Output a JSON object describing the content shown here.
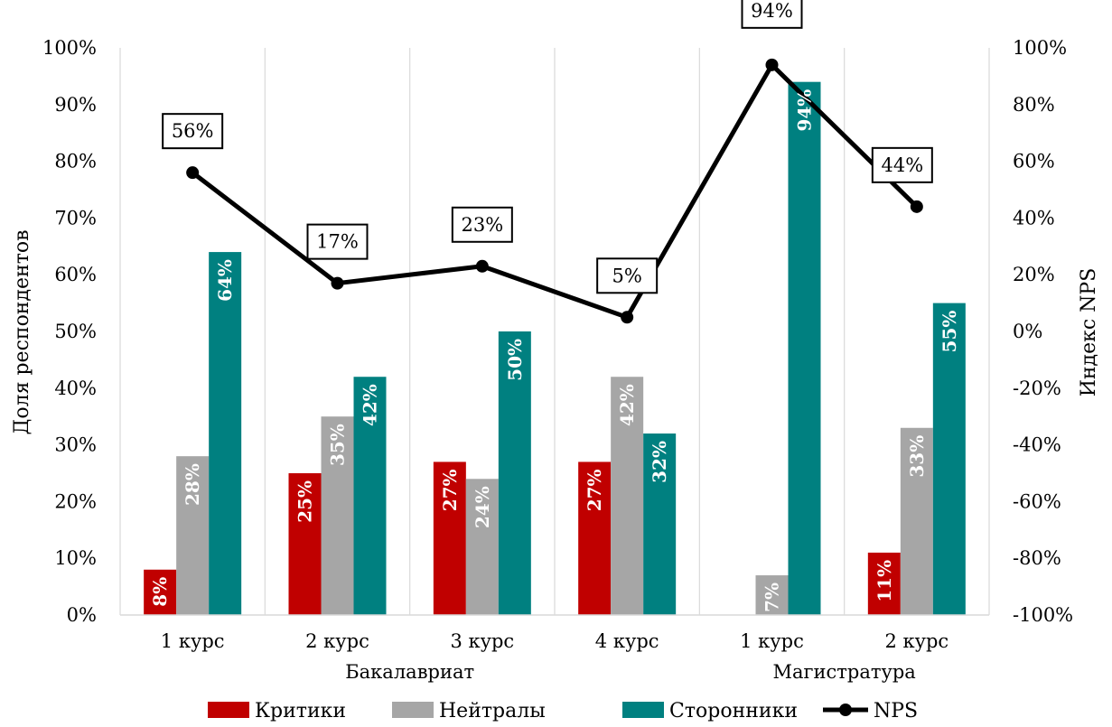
{
  "chart_data": {
    "type": "bar",
    "categories": [
      "1 курс",
      "2 курс",
      "3 курс",
      "4 курс",
      "1 курс",
      "2 курс"
    ],
    "groups": [
      {
        "label": "Бакалавриат",
        "span": [
          0,
          3
        ]
      },
      {
        "label": "Магистратура",
        "span": [
          4,
          5
        ]
      }
    ],
    "series": [
      {
        "name": "Критики",
        "color": "#c00000",
        "values": [
          8,
          25,
          27,
          27,
          null,
          11
        ],
        "labels": [
          "8%",
          "25%",
          "27%",
          "27%",
          "",
          "11%"
        ]
      },
      {
        "name": "Нейтралы",
        "color": "#a6a6a6",
        "values": [
          28,
          35,
          24,
          42,
          7,
          33
        ],
        "labels": [
          "28%",
          "35%",
          "24%",
          "42%",
          "7%",
          "33%"
        ]
      },
      {
        "name": "Сторонники",
        "color": "#008080",
        "values": [
          64,
          42,
          50,
          32,
          94,
          55
        ],
        "labels": [
          "64%",
          "42%",
          "50%",
          "32%",
          "94%",
          "55%"
        ]
      }
    ],
    "line_series": {
      "name": "NPS",
      "color": "#000000",
      "axis": "right",
      "values": [
        56,
        17,
        23,
        5,
        94,
        44
      ],
      "labels": [
        "56%",
        "17%",
        "23%",
        "5%",
        "94%",
        "44%"
      ]
    },
    "ylabel": "Доля респондентов",
    "y2label": "Индекс NPS",
    "ylim": [
      0,
      100
    ],
    "y2lim": [
      -100,
      100
    ],
    "yticks": [
      "0%",
      "10%",
      "20%",
      "30%",
      "40%",
      "50%",
      "60%",
      "70%",
      "80%",
      "90%",
      "100%"
    ],
    "y2ticks": [
      "-100%",
      "-80%",
      "-60%",
      "-40%",
      "-20%",
      "0%",
      "20%",
      "40%",
      "60%",
      "80%",
      "100%"
    ],
    "grid": "vertical",
    "legend": "bottom"
  }
}
